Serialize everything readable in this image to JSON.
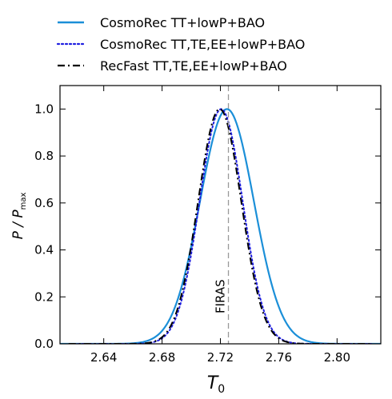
{
  "chart_data": {
    "type": "line",
    "xlabel": "T",
    "xlabel_sub": "0",
    "ylabel": "P / P",
    "ylabel_sub": "max",
    "xlim": [
      2.61,
      2.83
    ],
    "ylim": [
      0.0,
      1.1
    ],
    "xticks": [
      "2.64",
      "2.68",
      "2.72",
      "2.76",
      "2.80"
    ],
    "yticks": [
      "0.0",
      "0.2",
      "0.4",
      "0.6",
      "0.8",
      "1.0"
    ],
    "legend_position": "top",
    "series": [
      {
        "name": "CosmoRec TT+lowP+BAO",
        "color": "#1b8fd8",
        "style": "solid",
        "peak": 2.7245,
        "sigma": 0.0185,
        "x": [
          2.6252,
          2.6335,
          2.6418,
          2.65,
          2.6582,
          2.6665,
          2.6748,
          2.683,
          2.6912,
          2.6995,
          2.7078,
          2.716,
          2.7245,
          2.7328,
          2.741,
          2.7492,
          2.7575,
          2.7658,
          2.774,
          2.7822,
          2.7905,
          2.7988,
          2.807
        ],
        "y": [
          0.0,
          0.006,
          0.018,
          0.045,
          0.099,
          0.191,
          0.325,
          0.49,
          0.665,
          0.835,
          0.952,
          0.996,
          1.0,
          0.995,
          0.951,
          0.835,
          0.664,
          0.49,
          0.325,
          0.191,
          0.099,
          0.045,
          0.018
        ]
      },
      {
        "name": "CosmoRec TT,TE,EE+lowP+BAO",
        "color": "#1f1fe0",
        "style": "dotted",
        "peak": 2.7205,
        "sigma": 0.0148,
        "x": [
          2.6465,
          2.6539,
          2.6613,
          2.6687,
          2.6761,
          2.6835,
          2.6909,
          2.6983,
          2.7057,
          2.7131,
          2.7205,
          2.7279,
          2.7353,
          2.7427,
          2.7501,
          2.7575,
          2.7649,
          2.7723,
          2.7797,
          2.7871,
          2.7945
        ],
        "y": [
          0.004,
          0.011,
          0.03,
          0.072,
          0.15,
          0.27,
          0.44,
          0.624,
          0.8,
          0.935,
          1.0,
          0.98,
          0.88,
          0.72,
          0.52,
          0.34,
          0.2,
          0.1,
          0.043,
          0.016,
          0.005
        ]
      },
      {
        "name": "RecFast TT,TE,EE+lowP+BAO",
        "color": "#000000",
        "style": "dashdot",
        "peak": 2.7195,
        "sigma": 0.0148,
        "x": [
          2.6455,
          2.6529,
          2.6603,
          2.6677,
          2.6751,
          2.6825,
          2.6899,
          2.6973,
          2.7047,
          2.7121,
          2.7195,
          2.7269,
          2.7343,
          2.7417,
          2.7491,
          2.7565,
          2.7639,
          2.7713,
          2.7787,
          2.7861,
          2.7935
        ],
        "y": [
          0.004,
          0.011,
          0.03,
          0.072,
          0.15,
          0.27,
          0.44,
          0.624,
          0.8,
          0.935,
          1.0,
          0.98,
          0.88,
          0.72,
          0.52,
          0.34,
          0.2,
          0.1,
          0.043,
          0.016,
          0.005
        ]
      }
    ],
    "annotations": [
      {
        "text": "FIRAS",
        "x": 2.7255,
        "style": "vertical-dashed-line",
        "color": "#999999"
      }
    ]
  }
}
